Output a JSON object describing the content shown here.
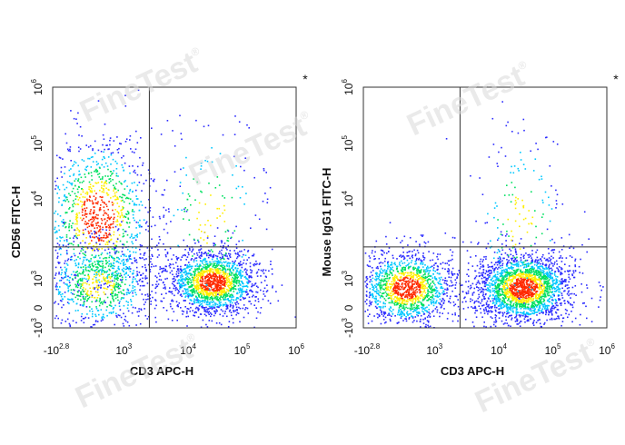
{
  "watermark": "FineTest",
  "watermark_mark": "®",
  "colors": {
    "low": "#2b2bff",
    "midlow": "#00c8ff",
    "mid": "#00e060",
    "midhigh": "#ffee00",
    "high": "#ff2a00"
  },
  "chart_data": [
    {
      "type": "scatter",
      "subtype": "flow-cytometry-density-dot-plot",
      "xlabel": "CD3 APC-H",
      "ylabel": "CD56 FITC-H",
      "x_scale": "biexponential",
      "y_scale": "biexponential",
      "xlim": [
        -631,
        1000000
      ],
      "ylim": [
        -1000,
        1000000
      ],
      "x_ticks": [
        {
          "base": "-10",
          "exp": "2.8"
        },
        {
          "base": "10",
          "exp": "3"
        },
        {
          "base": "10",
          "exp": "4"
        },
        {
          "base": "10",
          "exp": "5"
        },
        {
          "base": "10",
          "exp": "6"
        }
      ],
      "y_ticks": [
        {
          "base": "-10",
          "exp": "3"
        },
        {
          "base": "0",
          "exp": ""
        },
        {
          "base": "10",
          "exp": "3"
        },
        {
          "base": "10",
          "exp": "4"
        },
        {
          "base": "10",
          "exp": "5"
        },
        {
          "base": "10",
          "exp": "6"
        }
      ],
      "gate": {
        "x": 2500,
        "y": 2500
      },
      "annotation": "*",
      "populations": [
        {
          "x": 400,
          "y": 6000,
          "x_spread": 0.22,
          "y_spread": 0.32,
          "share": 0.3
        },
        {
          "x": 400,
          "y": 800,
          "x_spread": 0.22,
          "y_spread": 0.18,
          "share": 0.2
        },
        {
          "x": 28000,
          "y": 900,
          "x_spread": 0.17,
          "y_spread": 0.12,
          "share": 0.45
        },
        {
          "x": 25000,
          "y": 6000,
          "x_spread": 0.22,
          "y_spread": 0.4,
          "share": 0.05
        }
      ]
    },
    {
      "type": "scatter",
      "subtype": "flow-cytometry-density-dot-plot",
      "xlabel": "CD3 APC-H",
      "ylabel": "Mouse IgG1 FITC-H",
      "x_scale": "biexponential",
      "y_scale": "biexponential",
      "xlim": [
        -631,
        1000000
      ],
      "ylim": [
        -1000,
        1000000
      ],
      "x_ticks": [
        {
          "base": "-10",
          "exp": "2.8"
        },
        {
          "base": "10",
          "exp": "3"
        },
        {
          "base": "10",
          "exp": "4"
        },
        {
          "base": "10",
          "exp": "5"
        },
        {
          "base": "10",
          "exp": "6"
        }
      ],
      "y_ticks": [
        {
          "base": "-10",
          "exp": "3"
        },
        {
          "base": "0",
          "exp": ""
        },
        {
          "base": "10",
          "exp": "3"
        },
        {
          "base": "10",
          "exp": "4"
        },
        {
          "base": "10",
          "exp": "5"
        },
        {
          "base": "10",
          "exp": "6"
        }
      ],
      "gate": {
        "x": 2500,
        "y": 2500
      },
      "annotation": "*",
      "populations": [
        {
          "x": 350,
          "y": 700,
          "x_spread": 0.18,
          "y_spread": 0.14,
          "share": 0.38
        },
        {
          "x": 28000,
          "y": 700,
          "x_spread": 0.18,
          "y_spread": 0.13,
          "share": 0.57
        },
        {
          "x": 25000,
          "y": 5000,
          "x_spread": 0.18,
          "y_spread": 0.4,
          "share": 0.05
        }
      ]
    }
  ]
}
